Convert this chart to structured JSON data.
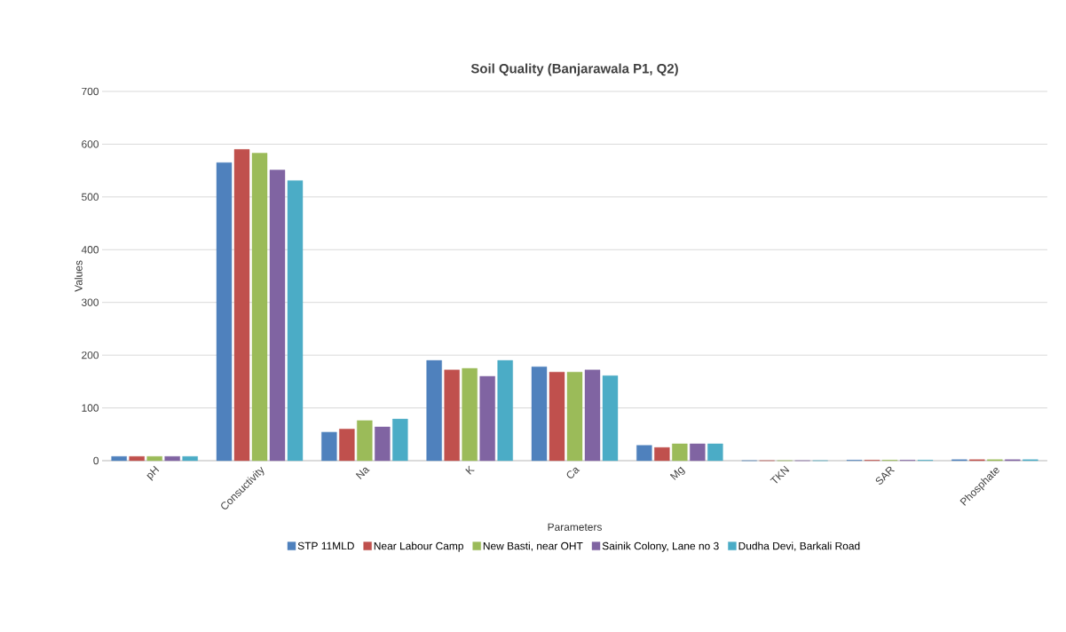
{
  "chart_data": {
    "type": "bar",
    "title": "Soil Quality (Banjarawala P1, Q2)",
    "xlabel": "Parameters",
    "ylabel": "Values",
    "categories": [
      "pH",
      "Consuctivity",
      "Na",
      "K",
      "Ca",
      "Mg",
      "TKN",
      "SAR",
      "Phosphate"
    ],
    "series": [
      {
        "name": "STP 11MLD",
        "color": "#4f81bd",
        "values": [
          8,
          565,
          54,
          190,
          178,
          29,
          0,
          1,
          2
        ]
      },
      {
        "name": "Near Labour Camp",
        "color": "#c0504d",
        "values": [
          8,
          590,
          60,
          172,
          168,
          25,
          0,
          1,
          2
        ]
      },
      {
        "name": "New Basti, near OHT",
        "color": "#9bbb59",
        "values": [
          8,
          583,
          76,
          175,
          168,
          32,
          0,
          1,
          2
        ]
      },
      {
        "name": "Sainik Colony, Lane no 3",
        "color": "#8064a2",
        "values": [
          8,
          551,
          64,
          160,
          172,
          32,
          0,
          1,
          2
        ]
      },
      {
        "name": "Dudha Devi, Barkali Road",
        "color": "#4bacc6",
        "values": [
          8,
          531,
          79,
          190,
          161,
          32,
          0,
          1,
          2
        ]
      }
    ],
    "ylim": [
      0,
      700
    ],
    "yticks": [
      0,
      100,
      200,
      300,
      400,
      500,
      600,
      700
    ],
    "grid": "y",
    "legend": "bottom"
  }
}
